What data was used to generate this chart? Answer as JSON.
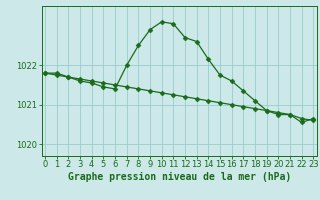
{
  "hours": [
    0,
    1,
    2,
    3,
    4,
    5,
    6,
    7,
    8,
    9,
    10,
    11,
    12,
    13,
    14,
    15,
    16,
    17,
    18,
    19,
    20,
    21,
    22,
    23
  ],
  "pressure1": [
    1021.8,
    1021.8,
    1021.7,
    1021.6,
    1021.55,
    1021.45,
    1021.4,
    1022.0,
    1022.5,
    1022.9,
    1023.1,
    1023.05,
    1022.7,
    1022.6,
    1022.15,
    1021.75,
    1021.6,
    1021.35,
    1021.1,
    1020.85,
    1020.75,
    1020.75,
    1020.55,
    1020.65
  ],
  "pressure2": [
    1021.8,
    1021.75,
    1021.7,
    1021.65,
    1021.6,
    1021.55,
    1021.5,
    1021.45,
    1021.4,
    1021.35,
    1021.3,
    1021.25,
    1021.2,
    1021.15,
    1021.1,
    1021.05,
    1021.0,
    1020.95,
    1020.9,
    1020.85,
    1020.8,
    1020.75,
    1020.65,
    1020.6
  ],
  "line_color": "#1a6b1a",
  "marker": "D",
  "marker_size": 2.5,
  "bg_color": "#cce8e8",
  "grid_color": "#99cccc",
  "axis_color": "#1a6b1a",
  "xlabel": "Graphe pression niveau de la mer (hPa)",
  "yticks": [
    1020,
    1021,
    1022
  ],
  "ylim": [
    1019.7,
    1023.5
  ],
  "xlim": [
    -0.3,
    23.3
  ],
  "xlabel_fontsize": 7,
  "tick_fontsize": 6
}
